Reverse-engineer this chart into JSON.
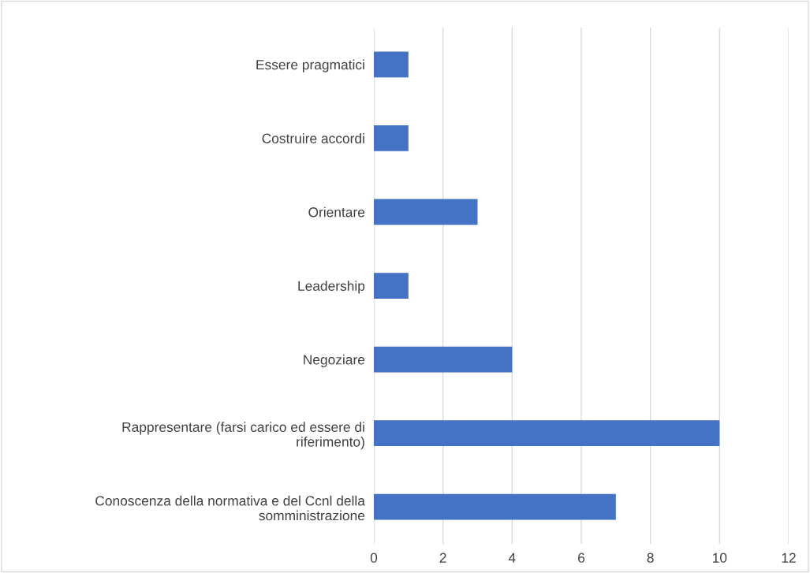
{
  "chart_data": {
    "type": "bar",
    "orientation": "horizontal",
    "categories": [
      "Essere pragmatici",
      "Costruire accordi",
      "Orientare",
      "Leadership",
      "Negoziare",
      "Rappresentare (farsi carico ed essere di riferimento)",
      "Conoscenza della normativa e del Ccnl della somministrazione"
    ],
    "values": [
      1,
      1,
      3,
      1,
      4,
      10,
      7
    ],
    "color": "#4472c4",
    "xlim": [
      0,
      12
    ],
    "xticks": [
      0,
      2,
      4,
      6,
      8,
      10,
      12
    ],
    "grid": "x",
    "legend": false
  }
}
